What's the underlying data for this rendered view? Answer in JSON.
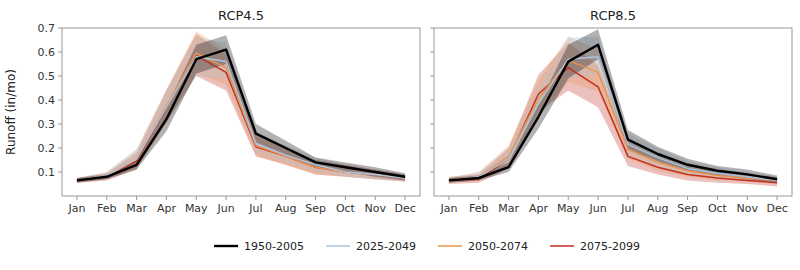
{
  "chart_data": [
    {
      "type": "line",
      "title": "RCP4.5",
      "ylabel": "Runoff (in/mo)",
      "categories": [
        "Jan",
        "Feb",
        "Mar",
        "Apr",
        "May",
        "Jun",
        "Jul",
        "Aug",
        "Sep",
        "Oct",
        "Nov",
        "Dec"
      ],
      "ylim": [
        0.0,
        0.7
      ],
      "yticks": [
        0.1,
        0.2,
        0.3,
        0.4,
        0.5,
        0.6,
        0.7
      ],
      "grid": false,
      "legend": "bottom",
      "series": [
        {
          "name": "1950-2005",
          "color": "#000000",
          "values": [
            0.065,
            0.08,
            0.13,
            0.32,
            0.57,
            0.61,
            0.26,
            0.2,
            0.14,
            0.12,
            0.1,
            0.08
          ],
          "low": [
            0.055,
            0.07,
            0.11,
            0.27,
            0.51,
            0.55,
            0.22,
            0.17,
            0.12,
            0.1,
            0.08,
            0.065
          ],
          "high": [
            0.075,
            0.09,
            0.15,
            0.37,
            0.63,
            0.67,
            0.3,
            0.23,
            0.16,
            0.14,
            0.12,
            0.095
          ]
        },
        {
          "name": "2025-2049",
          "color": "#a8c4de",
          "values": [
            0.065,
            0.085,
            0.155,
            0.37,
            0.58,
            0.56,
            0.22,
            0.17,
            0.13,
            0.1,
            0.09,
            0.075
          ],
          "low": [
            0.055,
            0.07,
            0.12,
            0.31,
            0.5,
            0.49,
            0.18,
            0.14,
            0.1,
            0.08,
            0.07,
            0.06
          ],
          "high": [
            0.075,
            0.1,
            0.195,
            0.44,
            0.66,
            0.64,
            0.27,
            0.21,
            0.16,
            0.13,
            0.11,
            0.09
          ]
        },
        {
          "name": "2050-2074",
          "color": "#e8944e",
          "values": [
            0.065,
            0.085,
            0.155,
            0.375,
            0.595,
            0.535,
            0.21,
            0.165,
            0.12,
            0.1,
            0.09,
            0.075
          ],
          "low": [
            0.055,
            0.07,
            0.12,
            0.31,
            0.51,
            0.465,
            0.17,
            0.13,
            0.09,
            0.08,
            0.07,
            0.06
          ],
          "high": [
            0.075,
            0.1,
            0.195,
            0.445,
            0.685,
            0.61,
            0.26,
            0.2,
            0.15,
            0.13,
            0.11,
            0.09
          ]
        },
        {
          "name": "2075-2099",
          "color": "#c03020",
          "values": [
            0.065,
            0.08,
            0.145,
            0.37,
            0.585,
            0.515,
            0.205,
            0.165,
            0.12,
            0.1,
            0.09,
            0.075
          ],
          "low": [
            0.055,
            0.065,
            0.11,
            0.305,
            0.5,
            0.44,
            0.165,
            0.13,
            0.09,
            0.08,
            0.07,
            0.06
          ],
          "high": [
            0.075,
            0.095,
            0.18,
            0.44,
            0.675,
            0.59,
            0.25,
            0.2,
            0.15,
            0.13,
            0.11,
            0.09
          ]
        }
      ]
    },
    {
      "type": "line",
      "title": "RCP8.5",
      "categories": [
        "Jan",
        "Feb",
        "Mar",
        "Apr",
        "May",
        "Jun",
        "Jul",
        "Aug",
        "Sep",
        "Oct",
        "Nov",
        "Dec"
      ],
      "ylim": [
        0.0,
        0.7
      ],
      "yticks": [
        0.1,
        0.2,
        0.3,
        0.4,
        0.5,
        0.6,
        0.7
      ],
      "grid": false,
      "tick_labels": "x",
      "series": [
        {
          "color": "#000000",
          "values": [
            0.065,
            0.075,
            0.12,
            0.33,
            0.56,
            0.63,
            0.235,
            0.175,
            0.13,
            0.105,
            0.09,
            0.07
          ],
          "low": [
            0.055,
            0.065,
            0.1,
            0.28,
            0.49,
            0.57,
            0.195,
            0.145,
            0.105,
            0.085,
            0.07,
            0.055
          ],
          "high": [
            0.075,
            0.085,
            0.14,
            0.38,
            0.63,
            0.695,
            0.275,
            0.205,
            0.155,
            0.125,
            0.11,
            0.085
          ]
        },
        {
          "color": "#a8c4de",
          "values": [
            0.065,
            0.08,
            0.155,
            0.385,
            0.57,
            0.58,
            0.215,
            0.16,
            0.115,
            0.095,
            0.08,
            0.065
          ],
          "low": [
            0.055,
            0.065,
            0.12,
            0.325,
            0.49,
            0.505,
            0.175,
            0.125,
            0.09,
            0.075,
            0.065,
            0.055
          ],
          "high": [
            0.075,
            0.1,
            0.195,
            0.455,
            0.66,
            0.665,
            0.26,
            0.2,
            0.145,
            0.12,
            0.1,
            0.08
          ]
        },
        {
          "color": "#e8944e",
          "values": [
            0.065,
            0.08,
            0.165,
            0.405,
            0.565,
            0.515,
            0.195,
            0.14,
            0.105,
            0.085,
            0.075,
            0.065
          ],
          "low": [
            0.055,
            0.065,
            0.125,
            0.34,
            0.475,
            0.435,
            0.155,
            0.105,
            0.08,
            0.065,
            0.06,
            0.05
          ],
          "high": [
            0.075,
            0.1,
            0.21,
            0.48,
            0.665,
            0.61,
            0.245,
            0.18,
            0.135,
            0.11,
            0.095,
            0.08
          ]
        },
        {
          "color": "#c03020",
          "values": [
            0.065,
            0.07,
            0.155,
            0.425,
            0.535,
            0.455,
            0.165,
            0.12,
            0.09,
            0.075,
            0.065,
            0.055
          ],
          "low": [
            0.05,
            0.055,
            0.115,
            0.35,
            0.44,
            0.37,
            0.125,
            0.09,
            0.065,
            0.055,
            0.05,
            0.04
          ],
          "high": [
            0.08,
            0.09,
            0.2,
            0.505,
            0.64,
            0.545,
            0.215,
            0.16,
            0.12,
            0.1,
            0.085,
            0.075
          ]
        }
      ]
    }
  ]
}
